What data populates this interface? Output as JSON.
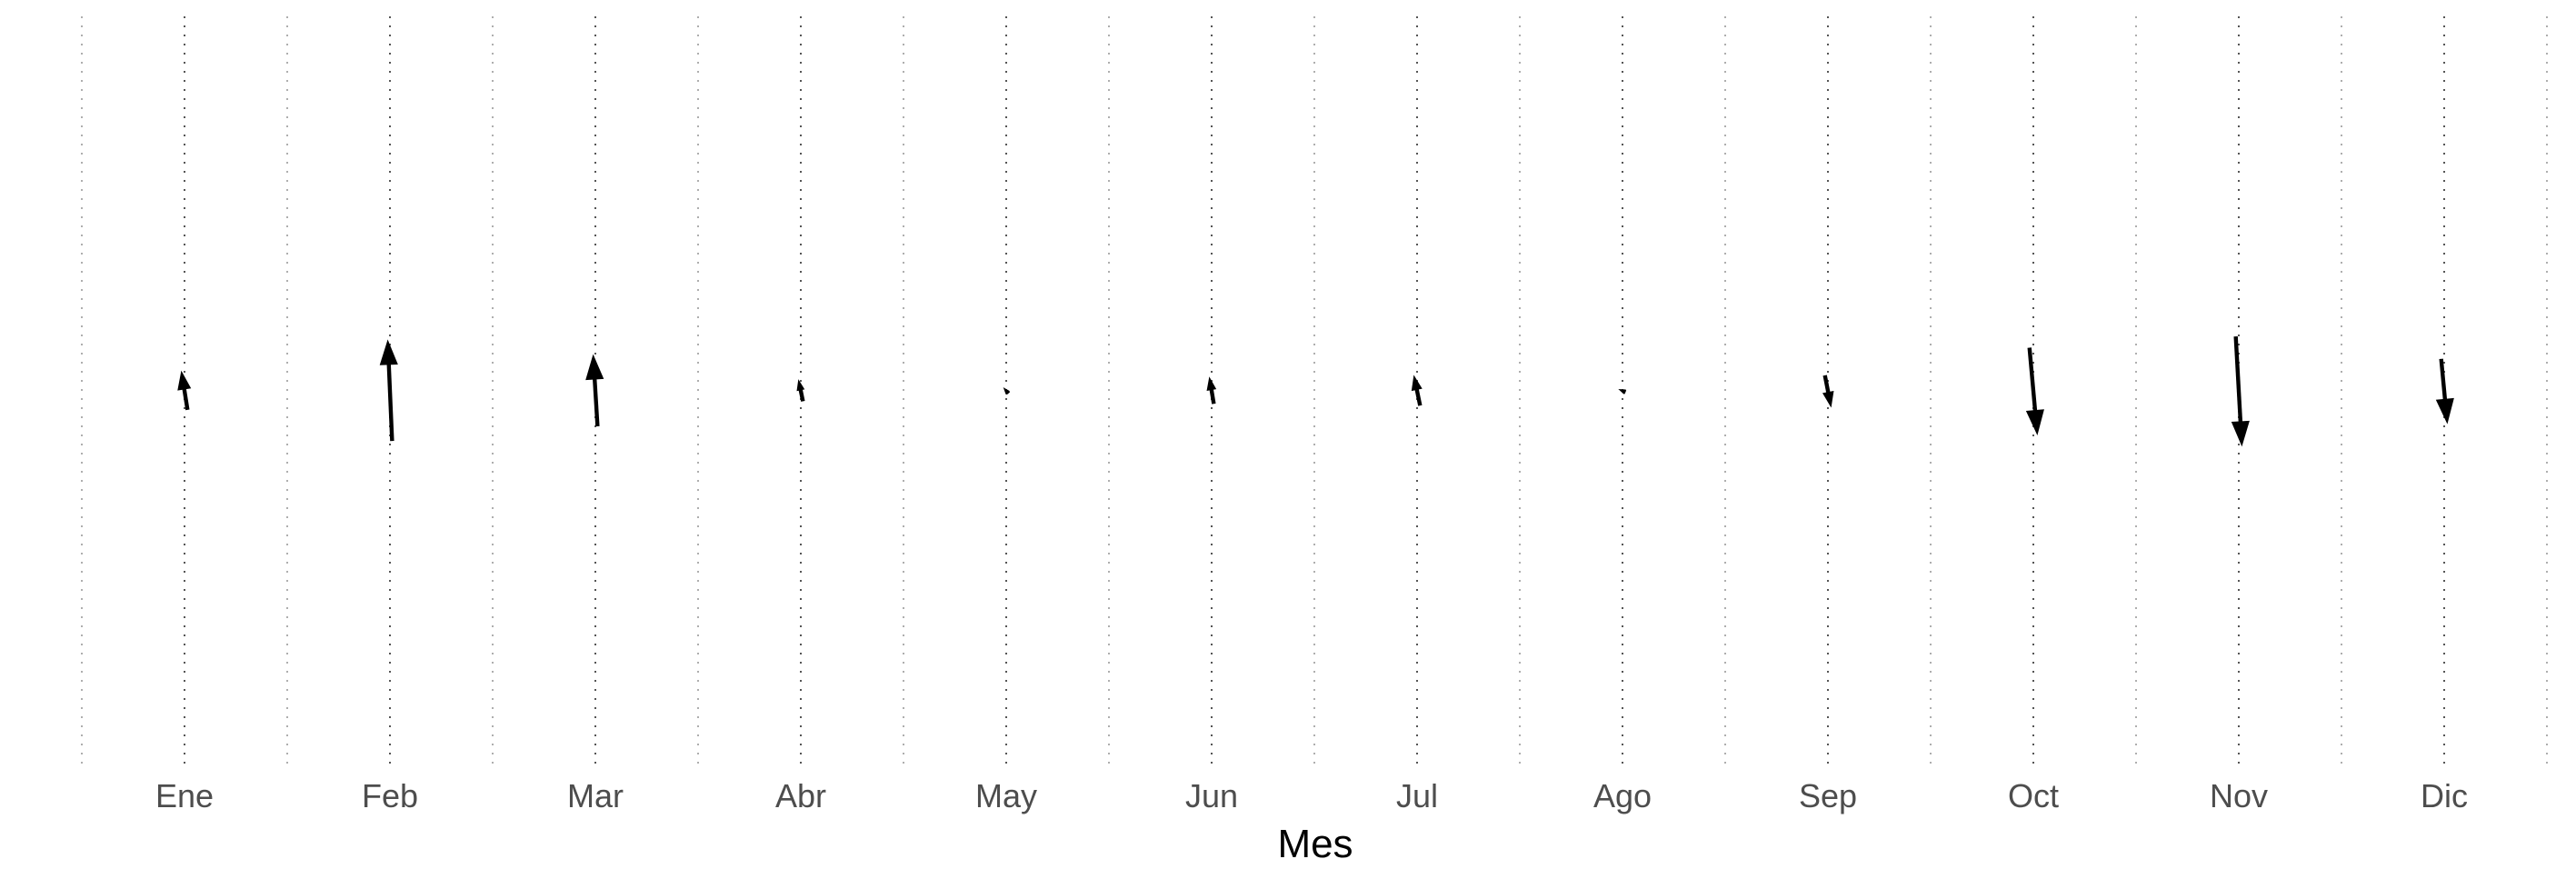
{
  "chart_data": {
    "type": "vector",
    "title": "",
    "xlabel": "Mes",
    "ylabel": "",
    "categories": [
      "Ene",
      "Feb",
      "Mar",
      "Abr",
      "May",
      "Jun",
      "Jul",
      "Ago",
      "Sep",
      "Oct",
      "Nov",
      "Dic"
    ],
    "vectors": [
      {
        "month": "Ene",
        "u": -0.07,
        "v": 0.44
      },
      {
        "month": "Feb",
        "u": -0.05,
        "v": 1.16
      },
      {
        "month": "Mar",
        "u": -0.05,
        "v": 0.82
      },
      {
        "month": "Abr",
        "u": -0.05,
        "v": 0.24
      },
      {
        "month": "May",
        "u": -0.05,
        "v": 0.06
      },
      {
        "month": "Jun",
        "u": -0.05,
        "v": 0.3
      },
      {
        "month": "Jul",
        "u": -0.07,
        "v": 0.34
      },
      {
        "month": "Ago",
        "u": -0.07,
        "v": 0.03
      },
      {
        "month": "Sep",
        "u": 0.07,
        "v": -0.36
      },
      {
        "month": "Oct",
        "u": 0.09,
        "v": -1.0
      },
      {
        "month": "Nov",
        "u": 0.07,
        "v": -1.26
      },
      {
        "month": "Dic",
        "u": 0.07,
        "v": -0.74
      }
    ],
    "grid": true,
    "legend": "none"
  }
}
